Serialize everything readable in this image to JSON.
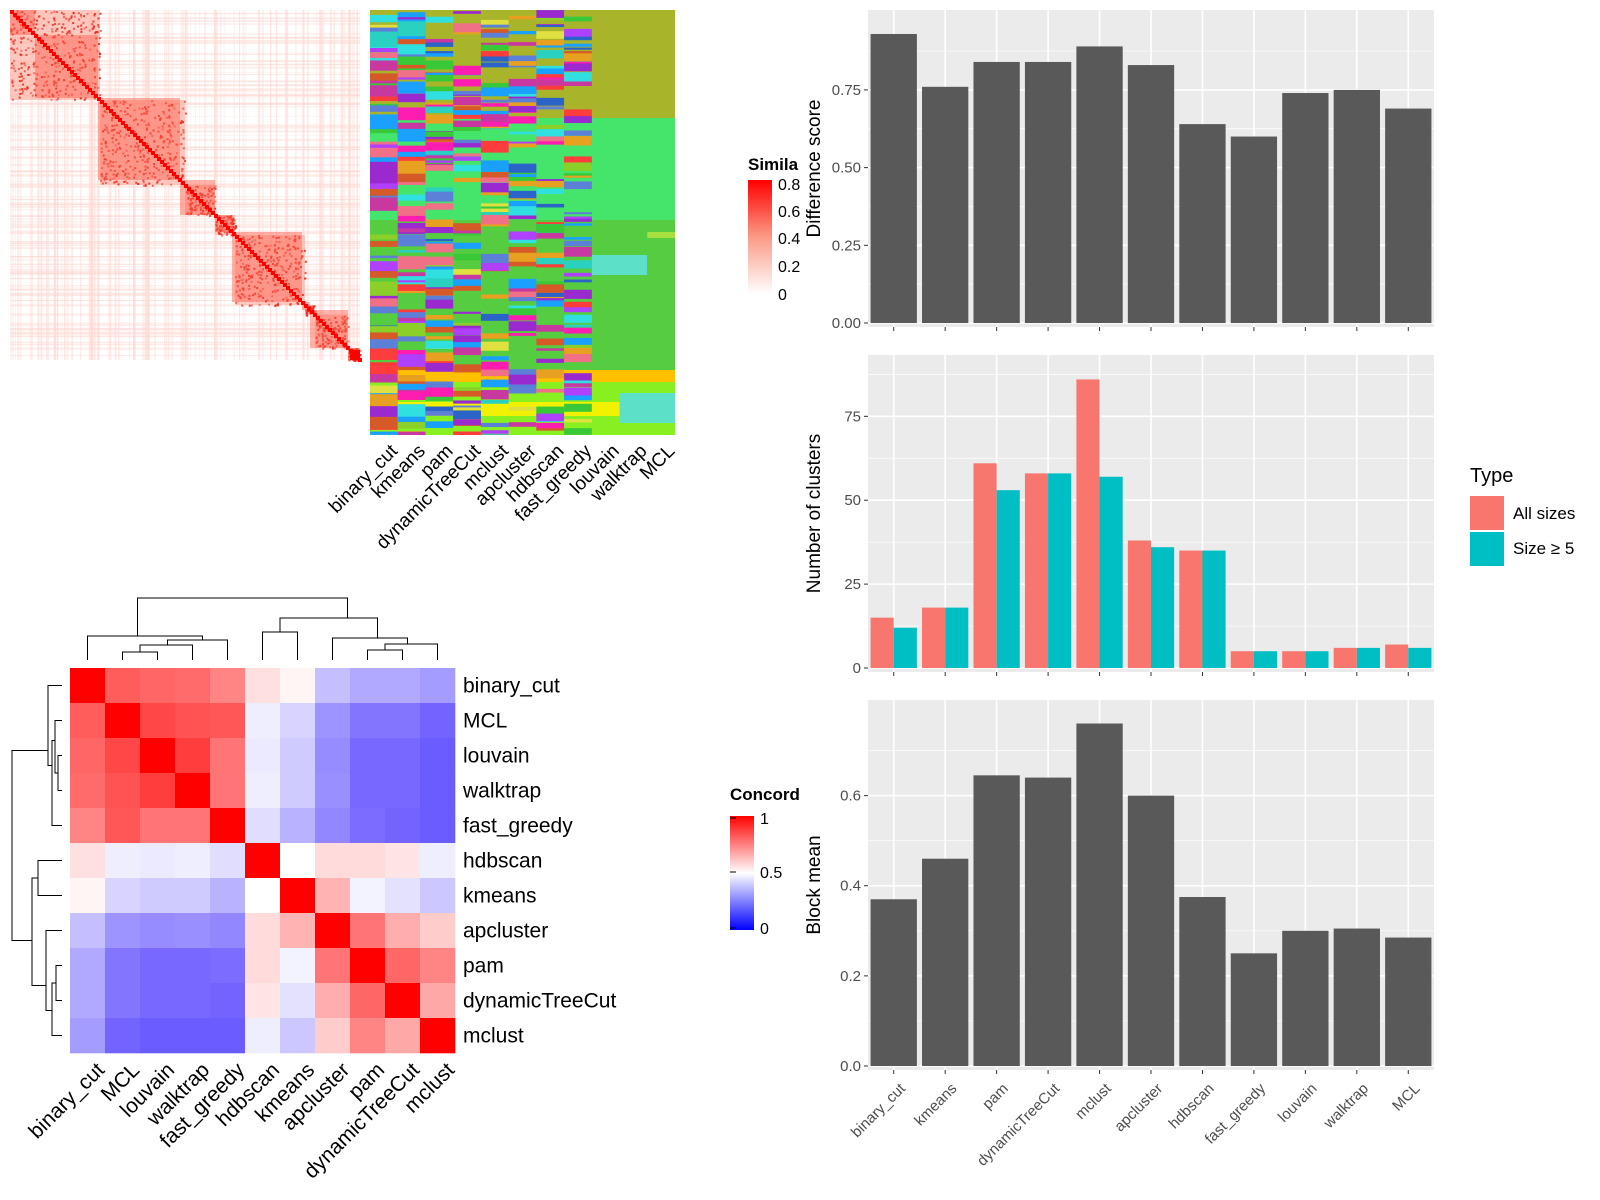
{
  "colors": {
    "panel_bg": "#ebebeb",
    "grid": "#ffffff",
    "bar_gray": "#595959",
    "all_sizes": "#f8766d",
    "size5": "#00bfc4",
    "heat_red": "#ff0000",
    "heat_white": "#ffffff",
    "heat_blue": "#0000ff",
    "axis_text": "#4d4d4d"
  },
  "similarity_heatmap": {
    "legend_title": "Simila",
    "legend_ticks": [
      "0.8",
      "0.6",
      "0.4",
      "0.2",
      "0"
    ],
    "methods": [
      "binary_cut",
      "kmeans",
      "pam",
      "dynamicTreeCut",
      "mclust",
      "apcluster",
      "hdbscan",
      "fast_greedy",
      "louvain",
      "walktrap",
      "MCL"
    ]
  },
  "concordance_heatmap": {
    "legend_title": "Concord",
    "legend_ticks": [
      "1",
      "0.5",
      "0"
    ],
    "order": [
      "binary_cut",
      "MCL",
      "louvain",
      "walktrap",
      "fast_greedy",
      "hdbscan",
      "kmeans",
      "apcluster",
      "pam",
      "dynamicTreeCut",
      "mclust"
    ],
    "matrix": [
      [
        1.0,
        0.82,
        0.8,
        0.79,
        0.74,
        0.56,
        0.52,
        0.35,
        0.3,
        0.3,
        0.27
      ],
      [
        0.82,
        1.0,
        0.86,
        0.84,
        0.83,
        0.46,
        0.4,
        0.25,
        0.18,
        0.18,
        0.14
      ],
      [
        0.8,
        0.86,
        1.0,
        0.88,
        0.77,
        0.45,
        0.38,
        0.23,
        0.15,
        0.15,
        0.12
      ],
      [
        0.79,
        0.84,
        0.88,
        1.0,
        0.77,
        0.46,
        0.38,
        0.24,
        0.15,
        0.15,
        0.12
      ],
      [
        0.74,
        0.83,
        0.77,
        0.77,
        1.0,
        0.42,
        0.32,
        0.22,
        0.16,
        0.14,
        0.12
      ],
      [
        0.56,
        0.46,
        0.45,
        0.46,
        0.42,
        1.0,
        0.5,
        0.57,
        0.57,
        0.55,
        0.46
      ],
      [
        0.52,
        0.4,
        0.38,
        0.38,
        0.32,
        0.5,
        1.0,
        0.65,
        0.47,
        0.43,
        0.37
      ],
      [
        0.35,
        0.25,
        0.23,
        0.24,
        0.22,
        0.57,
        0.65,
        1.0,
        0.77,
        0.66,
        0.6
      ],
      [
        0.3,
        0.18,
        0.15,
        0.15,
        0.16,
        0.57,
        0.47,
        0.77,
        1.0,
        0.8,
        0.74
      ],
      [
        0.3,
        0.18,
        0.15,
        0.15,
        0.14,
        0.55,
        0.43,
        0.66,
        0.8,
        1.0,
        0.67
      ],
      [
        0.27,
        0.14,
        0.12,
        0.12,
        0.12,
        0.46,
        0.37,
        0.6,
        0.74,
        0.67,
        1.0
      ]
    ]
  },
  "chart_data": [
    {
      "type": "bar",
      "categories": [
        "binary_cut",
        "kmeans",
        "pam",
        "dynamicTreeCut",
        "mclust",
        "apcluster",
        "hdbscan",
        "fast_greedy",
        "louvain",
        "walktrap",
        "MCL"
      ],
      "values": [
        0.93,
        0.76,
        0.84,
        0.84,
        0.89,
        0.83,
        0.64,
        0.6,
        0.74,
        0.75,
        0.69
      ],
      "ylabel": "Difference score",
      "yticks": [
        0,
        0.25,
        0.5,
        0.75
      ],
      "ytick_labels": [
        "0.00",
        "0.25",
        "0.50",
        "0.75"
      ],
      "ylim": [
        0,
        0.975
      ],
      "grid": true
    },
    {
      "type": "bar",
      "categories": [
        "binary_cut",
        "kmeans",
        "pam",
        "dynamicTreeCut",
        "mclust",
        "apcluster",
        "hdbscan",
        "fast_greedy",
        "louvain",
        "walktrap",
        "MCL"
      ],
      "series": [
        {
          "name": "All sizes",
          "values": [
            15,
            18,
            61,
            58,
            86,
            38,
            35,
            5,
            5,
            6,
            7
          ]
        },
        {
          "name": "Size ≥ 5",
          "values": [
            12,
            18,
            53,
            58,
            57,
            36,
            35,
            5,
            5,
            6,
            6
          ]
        }
      ],
      "ylabel": "Number of clusters",
      "yticks": [
        0,
        25,
        50,
        75
      ],
      "ytick_labels": [
        "0",
        "25",
        "50",
        "75"
      ],
      "ylim": [
        0,
        90.3
      ],
      "legend_title": "Type",
      "legend_position": "right",
      "grid": true
    },
    {
      "type": "bar",
      "categories": [
        "binary_cut",
        "kmeans",
        "pam",
        "dynamicTreeCut",
        "mclust",
        "apcluster",
        "hdbscan",
        "fast_greedy",
        "louvain",
        "walktrap",
        "MCL"
      ],
      "values": [
        0.37,
        0.46,
        0.645,
        0.64,
        0.76,
        0.6,
        0.375,
        0.25,
        0.3,
        0.305,
        0.285
      ],
      "ylabel": "Block mean",
      "yticks": [
        0,
        0.2,
        0.4,
        0.6
      ],
      "ytick_labels": [
        "0.0",
        "0.2",
        "0.4",
        "0.6"
      ],
      "ylim": [
        0,
        0.79
      ],
      "grid": true
    }
  ]
}
